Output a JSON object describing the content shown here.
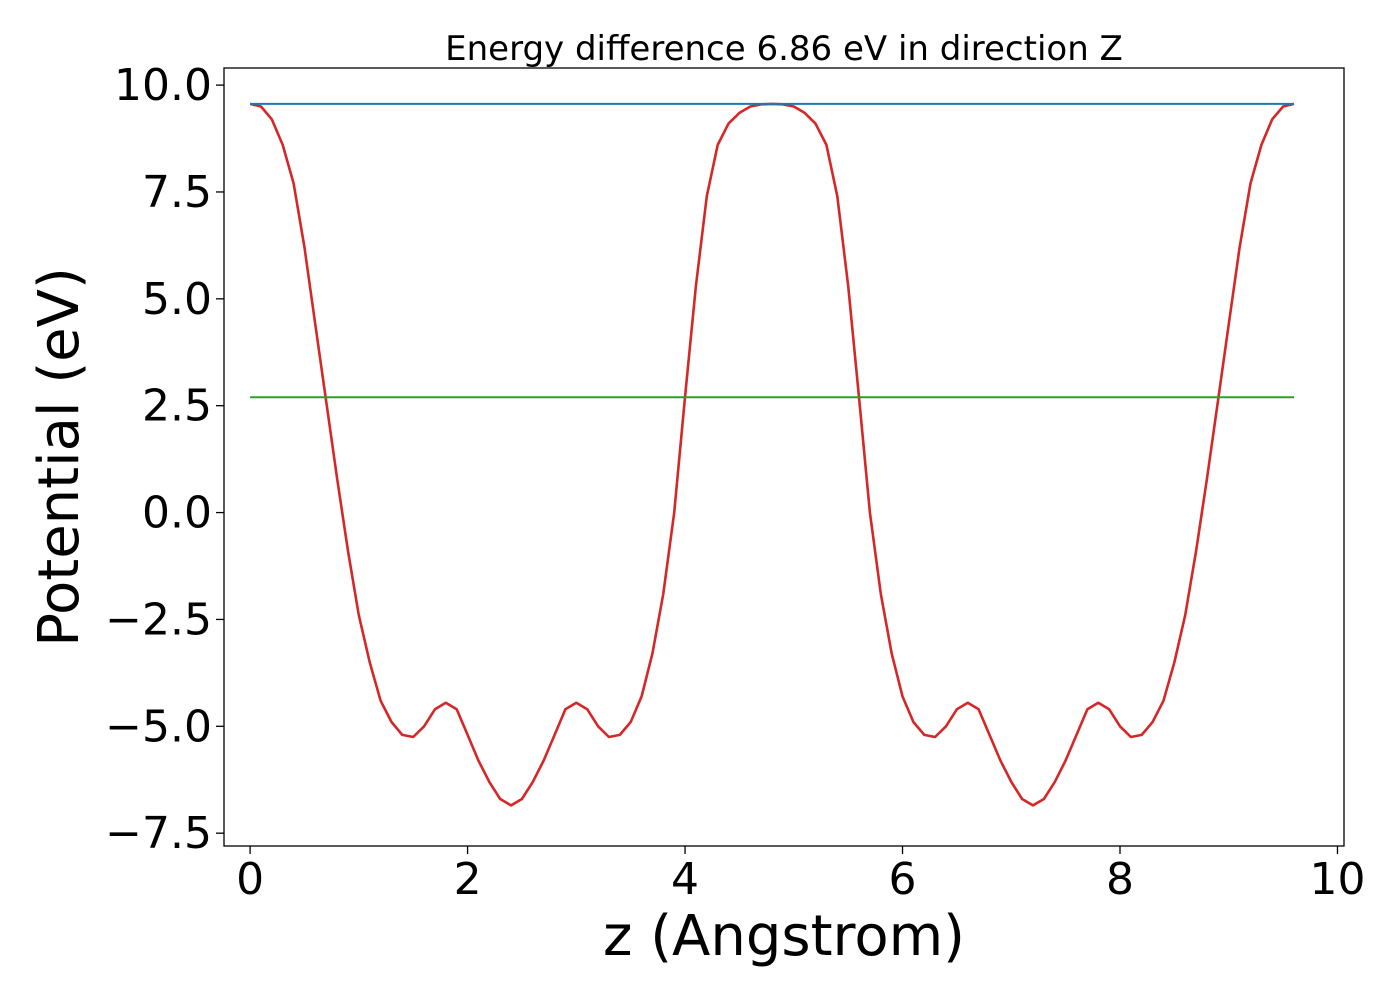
{
  "chart_data": {
    "type": "line",
    "title": "Energy difference 6.86 eV in direction Z",
    "xlabel": "z (Angstrom)",
    "ylabel": "Potential (eV)",
    "xlim": [
      -0.24,
      10.06
    ],
    "ylim": [
      -7.8,
      10.4
    ],
    "x_ticks": [
      0,
      2,
      4,
      6,
      8,
      10
    ],
    "x_tick_labels": [
      "0",
      "2",
      "4",
      "6",
      "8",
      "10"
    ],
    "y_ticks": [
      -7.5,
      -5.0,
      -2.5,
      0.0,
      2.5,
      5.0,
      7.5,
      10.0
    ],
    "y_tick_labels": [
      "−7.5",
      "−5.0",
      "−2.5",
      "0.0",
      "2.5",
      "5.0",
      "7.5",
      "10.0"
    ],
    "grid": false,
    "series": [
      {
        "color": "#d62728",
        "x": [
          0,
          0.1,
          0.2,
          0.3,
          0.4,
          0.5,
          0.6,
          0.7,
          0.8,
          0.9,
          1.0,
          1.1,
          1.2,
          1.3,
          1.4,
          1.5,
          1.6,
          1.7,
          1.8,
          1.9,
          2.0,
          2.1,
          2.2,
          2.3,
          2.4,
          2.5,
          2.6,
          2.7,
          2.8,
          2.9,
          3.0,
          3.1,
          3.2,
          3.3,
          3.4,
          3.5,
          3.6,
          3.7,
          3.8,
          3.9,
          4.0,
          4.1,
          4.2,
          4.3,
          4.4,
          4.5,
          4.6,
          4.7,
          4.8,
          4.9,
          5.0,
          5.1,
          5.2,
          5.3,
          5.4,
          5.5,
          5.6,
          5.7,
          5.8,
          5.9,
          6.0,
          6.1,
          6.2,
          6.3,
          6.4,
          6.5,
          6.6,
          6.7,
          6.8,
          6.9,
          7.0,
          7.1,
          7.2,
          7.3,
          7.4,
          7.5,
          7.6,
          7.7,
          7.8,
          7.9,
          8.0,
          8.1,
          8.2,
          8.3,
          8.4,
          8.5,
          8.6,
          8.7,
          8.8,
          8.9,
          9.0,
          9.1,
          9.2,
          9.3,
          9.4,
          9.5,
          9.6
        ],
        "y": [
          9.56,
          9.5,
          9.2,
          8.6,
          7.7,
          6.2,
          4.4,
          2.6,
          0.8,
          -0.9,
          -2.4,
          -3.5,
          -4.4,
          -4.9,
          -5.2,
          -5.25,
          -5.0,
          -4.6,
          -4.45,
          -4.6,
          -5.2,
          -5.8,
          -6.3,
          -6.7,
          -6.85,
          -6.7,
          -6.3,
          -5.8,
          -5.2,
          -4.6,
          -4.45,
          -4.6,
          -5.0,
          -5.25,
          -5.2,
          -4.9,
          -4.3,
          -3.3,
          -1.9,
          0.0,
          2.7,
          5.3,
          7.4,
          8.6,
          9.1,
          9.35,
          9.5,
          9.55,
          9.56,
          9.55,
          9.5,
          9.35,
          9.1,
          8.6,
          7.4,
          5.3,
          2.7,
          0.0,
          -1.9,
          -3.3,
          -4.3,
          -4.9,
          -5.2,
          -5.25,
          -5.0,
          -4.6,
          -4.45,
          -4.6,
          -5.2,
          -5.8,
          -6.3,
          -6.7,
          -6.85,
          -6.7,
          -6.3,
          -5.8,
          -5.2,
          -4.6,
          -4.45,
          -4.6,
          -5.0,
          -5.25,
          -5.2,
          -4.9,
          -4.4,
          -3.5,
          -2.4,
          -0.9,
          0.8,
          2.6,
          4.4,
          6.2,
          7.7,
          8.6,
          9.2,
          9.5,
          9.56
        ]
      },
      {
        "color": "#1f77b4",
        "x": [
          0,
          9.6
        ],
        "y": [
          9.56,
          9.56
        ]
      },
      {
        "color": "#2ca02c",
        "x": [
          0,
          9.6
        ],
        "y": [
          2.7,
          2.7
        ]
      }
    ]
  }
}
